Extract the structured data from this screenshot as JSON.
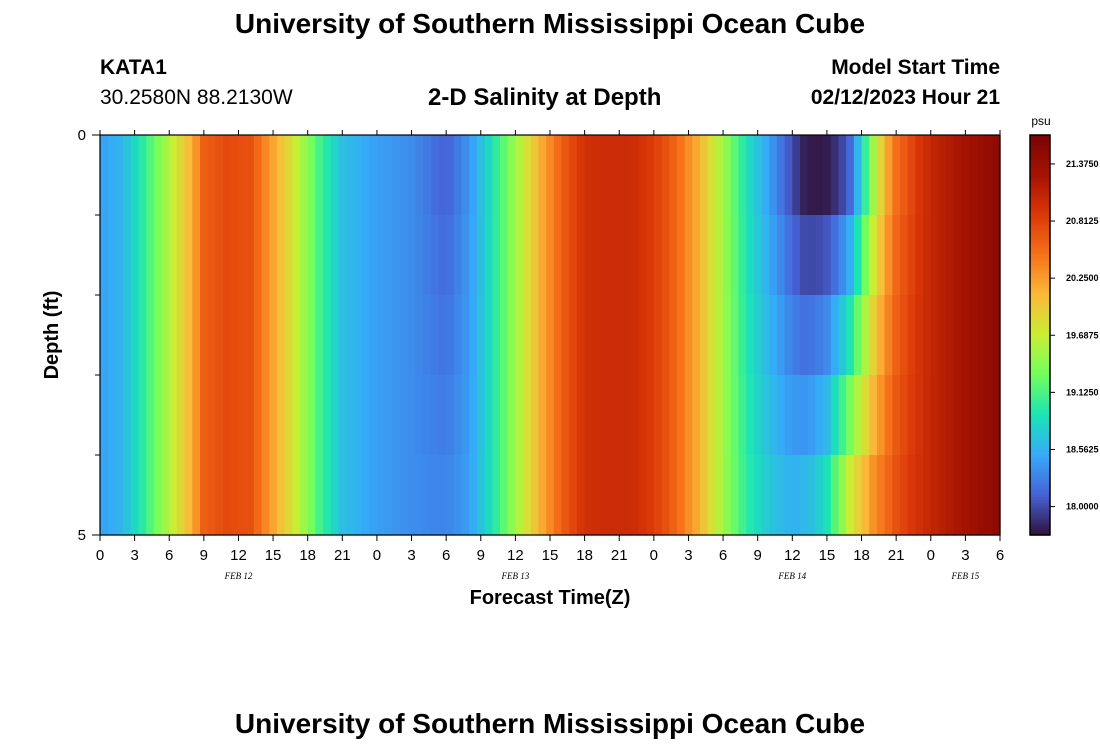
{
  "page": {
    "title": "University of Southern Mississippi Ocean Cube",
    "footer_title": "University of Southern Mississippi Ocean Cube",
    "station": "KATA1",
    "coordinates": "30.2580N  88.2130W",
    "subtitle": "2-D Salinity at Depth",
    "model_start_label": "Model Start Time",
    "model_start_value": "02/12/2023 Hour 21"
  },
  "chart_data": {
    "type": "heatmap",
    "title": "2-D Salinity at Depth",
    "xlabel": "Forecast Time(Z)",
    "ylabel": "Depth (ft)",
    "x_tick_labels": [
      "0",
      "3",
      "6",
      "9",
      "12",
      "15",
      "18",
      "21",
      "0",
      "3",
      "6",
      "9",
      "12",
      "15",
      "18",
      "21",
      "0",
      "3",
      "6",
      "9",
      "12",
      "15",
      "18",
      "21",
      "0",
      "3",
      "6"
    ],
    "y_tick_labels": [
      "0",
      "5"
    ],
    "y_range": [
      0,
      5
    ],
    "x_range_hours": [
      0,
      78
    ],
    "date_labels": [
      {
        "label": "FEB 12",
        "hour": 12
      },
      {
        "label": "FEB 13",
        "hour": 36
      },
      {
        "label": "FEB 14",
        "hour": 60
      },
      {
        "label": "FEB 15",
        "hour": 75
      }
    ],
    "colorbar": {
      "unit": "psu",
      "min": 17.72,
      "max": 21.66,
      "tick_labels": [
        "21.3750",
        "20.8125",
        "20.2500",
        "19.6875",
        "19.1250",
        "18.5625",
        "18.0000"
      ],
      "tick_values": [
        21.375,
        20.8125,
        20.25,
        19.6875,
        19.125,
        18.5625,
        18.0
      ]
    },
    "series": [
      {
        "name": "salinity_by_hour_at_surface",
        "x": [
          0,
          2,
          4,
          6,
          8,
          9,
          11,
          13,
          15,
          17,
          19,
          21,
          24,
          27,
          30,
          32,
          34,
          36,
          38,
          40,
          42,
          44,
          46,
          48,
          50,
          52,
          54,
          56,
          58,
          60,
          61,
          62,
          63,
          64,
          65,
          66,
          67,
          68,
          69,
          70,
          71,
          72,
          74,
          76,
          78
        ],
        "values": [
          18.45,
          18.6,
          19.05,
          19.6,
          20.15,
          20.6,
          20.75,
          20.7,
          20.2,
          19.7,
          19.1,
          18.65,
          18.45,
          18.35,
          18.1,
          18.4,
          18.9,
          19.5,
          20.1,
          20.6,
          20.95,
          21.0,
          21.0,
          20.85,
          20.55,
          20.1,
          19.5,
          18.9,
          18.45,
          18.0,
          17.8,
          17.75,
          17.78,
          17.9,
          18.15,
          18.8,
          19.5,
          20.1,
          20.5,
          20.7,
          20.9,
          21.05,
          21.2,
          21.35,
          21.5
        ]
      },
      {
        "name": "salinity_by_hour_at_bottom",
        "x": [
          0,
          2,
          4,
          6,
          8,
          9,
          11,
          13,
          15,
          17,
          19,
          21,
          24,
          27,
          30,
          32,
          34,
          36,
          38,
          40,
          42,
          44,
          46,
          48,
          50,
          52,
          54,
          56,
          58,
          60,
          61,
          62,
          63,
          64,
          65,
          66,
          67,
          68,
          69,
          70,
          71,
          72,
          74,
          76,
          78
        ],
        "values": [
          18.45,
          18.6,
          19.05,
          19.6,
          20.15,
          20.6,
          20.75,
          20.7,
          20.2,
          19.7,
          19.1,
          18.65,
          18.45,
          18.35,
          18.3,
          18.45,
          18.9,
          19.5,
          20.1,
          20.6,
          20.95,
          21.0,
          21.0,
          20.85,
          20.55,
          20.1,
          19.5,
          19.0,
          18.7,
          18.55,
          18.6,
          18.7,
          18.9,
          19.3,
          19.7,
          20.0,
          20.3,
          20.5,
          20.7,
          20.85,
          20.95,
          21.05,
          21.2,
          21.35,
          21.5
        ]
      }
    ]
  }
}
